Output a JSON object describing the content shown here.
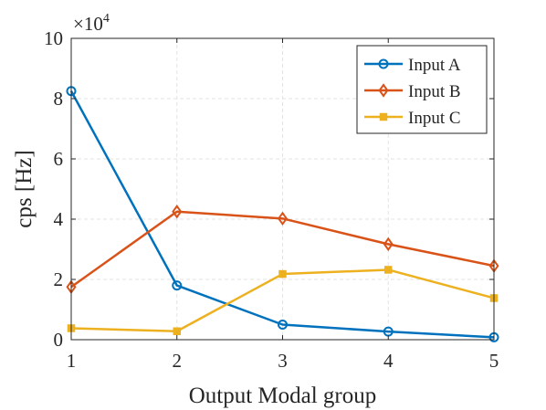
{
  "chart_data": {
    "type": "line",
    "title": "",
    "xlabel": "Output Modal group",
    "ylabel": "cps [Hz]",
    "y_exponent_label": "×10",
    "y_exponent_power": "4",
    "x": [
      1,
      2,
      3,
      4,
      5
    ],
    "xlim": [
      1,
      5
    ],
    "ylim": [
      0,
      10
    ],
    "xticks": [
      "1",
      "2",
      "3",
      "4",
      "5"
    ],
    "yticks": [
      "0",
      "2",
      "4",
      "6",
      "8",
      "10"
    ],
    "grid": true,
    "legend_location": "top-right",
    "series": [
      {
        "name": "Input A",
        "color": "#0072BD",
        "marker": "circle",
        "values": [
          8.25,
          1.8,
          0.5,
          0.27,
          0.08
        ]
      },
      {
        "name": "Input B",
        "color": "#D95319",
        "marker": "diamond",
        "values": [
          1.75,
          4.25,
          4.02,
          3.17,
          2.45
        ]
      },
      {
        "name": "Input C",
        "color": "#EDB120",
        "marker": "square",
        "values": [
          0.38,
          0.28,
          2.18,
          2.32,
          1.38
        ]
      }
    ]
  }
}
